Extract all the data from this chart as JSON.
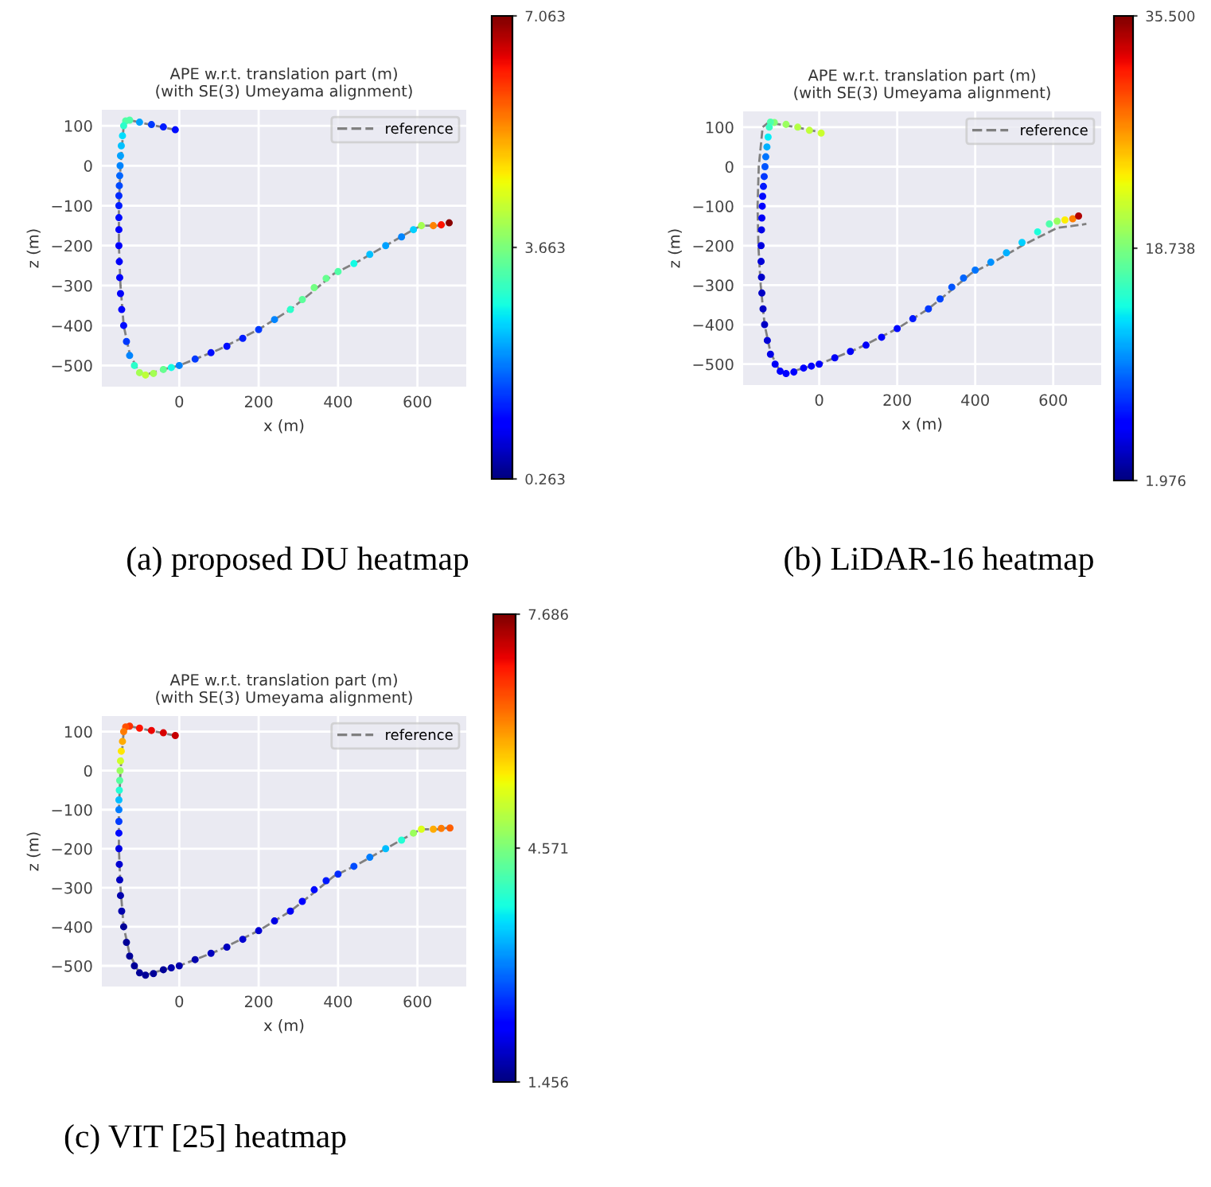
{
  "chart_data": [
    {
      "type": "line",
      "title": "APE w.r.t. translation part (m)\n(with SE(3) Umeyama alignment)",
      "xlabel": "x (m)",
      "ylabel": "z (m)",
      "xlim": [
        -195,
        723
      ],
      "ylim": [
        -553,
        140
      ],
      "xticks": [
        0,
        200,
        400,
        600
      ],
      "yticks": [
        100,
        0,
        {
          "value": -100,
          "label": "−100"
        },
        {
          "value": -200,
          "label": "−200"
        },
        {
          "value": -300,
          "label": "−300"
        },
        {
          "value": -400,
          "label": "−400"
        },
        {
          "value": -500,
          "label": "−500"
        }
      ],
      "grid": true,
      "legend": "top right",
      "clim": [
        0.263,
        7.063
      ],
      "cticks": [
        0.263,
        3.663,
        7.063
      ],
      "annotations": [
        "(a) proposed DU heatmap"
      ],
      "series": [
        {
          "type": "scatter",
          "x": [
            -10,
            -40,
            -70,
            -100,
            -125,
            -135,
            -140,
            -143,
            -146,
            -148,
            -149,
            -150,
            -151,
            -152,
            -152,
            -152,
            -152,
            -152,
            -151,
            -150,
            -148,
            -145,
            -140,
            -133,
            -125,
            -113,
            -100,
            -85,
            -65,
            -40,
            -20,
            0,
            40,
            80,
            120,
            160,
            200,
            240,
            280,
            310,
            340,
            370,
            400,
            440,
            480,
            520,
            560,
            590,
            610,
            640,
            660,
            680
          ],
          "values": [
            90,
            97,
            103,
            109,
            114,
            112,
            100,
            75,
            50,
            25,
            0,
            -25,
            -50,
            -75,
            -100,
            -130,
            -160,
            -200,
            -240,
            -280,
            -320,
            -360,
            -400,
            -440,
            -475,
            -500,
            -518,
            -524,
            -520,
            -510,
            -505,
            -500,
            -484,
            -468,
            -452,
            -432,
            -410,
            -385,
            -360,
            -335,
            -305,
            -282,
            -265,
            -245,
            -222,
            -200,
            -178,
            -160,
            -150,
            -150,
            -148,
            -143
          ],
          "colors": [
            "#000dff",
            "#001cff",
            "#003aff",
            "#00a3ff",
            "#50ffa7",
            "#50ffa7",
            "#2bffcb",
            "#00dffc",
            "#00c1ff",
            "#00a3ff",
            "#0085ff",
            "#0067ff",
            "#0049ff",
            "#002bff",
            "#001cff",
            "#000dff",
            "#0000ff",
            "#0000fc",
            "#0000fc",
            "#0000fc",
            "#0000fc",
            "#0000ff",
            "#000dff",
            "#003aff",
            "#0085ff",
            "#2bffcb",
            "#a4ff52",
            "#bcff3a",
            "#a4ff52",
            "#67ff8f",
            "#13fde4",
            "#0085ff",
            "#003aff",
            "#000dff",
            "#000dff",
            "#001cff",
            "#003aff",
            "#0085ff",
            "#2bffcb",
            "#5bff9b",
            "#74ff83",
            "#67ff8f",
            "#50ffa7",
            "#13fde4",
            "#00c1ff",
            "#00a3ff",
            "#0085ff",
            "#00d0ff",
            "#a4ff52",
            "#ff8400",
            "#ff1400",
            "#8a0000"
          ],
          "cvalues": [
            1.2,
            1.3,
            1.5,
            2.2,
            3.3,
            3.3,
            3.0,
            2.6,
            2.4,
            2.2,
            2.0,
            1.8,
            1.6,
            1.4,
            1.3,
            1.2,
            1.1,
            1.0,
            1.0,
            1.0,
            1.0,
            1.1,
            1.2,
            1.5,
            2.0,
            3.0,
            4.0,
            4.2,
            4.0,
            3.5,
            2.8,
            2.0,
            1.5,
            1.2,
            1.2,
            1.3,
            1.5,
            2.0,
            3.0,
            3.4,
            3.6,
            3.5,
            3.3,
            2.8,
            2.4,
            2.2,
            2.0,
            2.5,
            4.0,
            5.5,
            6.3,
            7.0
          ]
        },
        {
          "name": "reference",
          "color": "#808080",
          "line_style": "dashed",
          "x": [
            -10,
            -60,
            -130,
            -140,
            -148,
            -152,
            -152,
            -148,
            -140,
            -125,
            -100,
            -80,
            -40,
            0,
            100,
            200,
            280,
            330,
            390,
            450,
            520,
            590,
            610,
            650,
            685
          ],
          "values": [
            90,
            100,
            115,
            100,
            0,
            -100,
            -200,
            -300,
            -400,
            -470,
            -520,
            -522,
            -510,
            -500,
            -460,
            -410,
            -360,
            -320,
            -270,
            -240,
            -200,
            -160,
            -150,
            -150,
            -145
          ]
        }
      ]
    },
    {
      "type": "line",
      "title": "APE w.r.t. translation part (m)\n(with SE(3) Umeyama alignment)",
      "xlabel": "x (m)",
      "ylabel": "z (m)",
      "xlim": [
        -195,
        723
      ],
      "ylim": [
        -553,
        140
      ],
      "xticks": [
        0,
        200,
        400,
        600
      ],
      "yticks": [
        100,
        0,
        {
          "value": -100,
          "label": "−100"
        },
        {
          "value": -200,
          "label": "−200"
        },
        {
          "value": -300,
          "label": "−300"
        },
        {
          "value": -400,
          "label": "−400"
        },
        {
          "value": -500,
          "label": "−500"
        }
      ],
      "grid": true,
      "legend": "top right",
      "clim": [
        1.976,
        35.5
      ],
      "cticks": [
        1.976,
        18.738,
        {
          "value": 35.5,
          "label": "35.500"
        }
      ],
      "annotations": [
        "(b) LiDAR-16 heatmap"
      ],
      "series": [
        {
          "type": "scatter",
          "x": [
            5,
            -25,
            -55,
            -85,
            -115,
            -125,
            -128,
            -131,
            -134,
            -137,
            -139,
            -141,
            -143,
            -145,
            -146,
            -147,
            -148,
            -149,
            -149,
            -148,
            -147,
            -144,
            -140,
            -133,
            -125,
            -113,
            -100,
            -85,
            -65,
            -40,
            -20,
            0,
            40,
            80,
            120,
            160,
            200,
            240,
            280,
            310,
            340,
            370,
            400,
            440,
            480,
            520,
            560,
            590,
            610,
            630,
            650,
            665
          ],
          "values": [
            85,
            92,
            100,
            107,
            112,
            113,
            100,
            75,
            50,
            25,
            0,
            -25,
            -50,
            -75,
            -100,
            -130,
            -160,
            -200,
            -240,
            -280,
            -320,
            -360,
            -400,
            -440,
            -475,
            -500,
            -518,
            -524,
            -520,
            -510,
            -505,
            -500,
            -484,
            -468,
            -452,
            -432,
            -410,
            -385,
            -360,
            -335,
            -305,
            -282,
            -262,
            -242,
            -218,
            -192,
            -165,
            -145,
            -138,
            -135,
            -132,
            -125
          ],
          "colors": [
            "#cbff33",
            "#bfff40",
            "#b3ff4c",
            "#9aff64",
            "#82ff7d",
            "#51ffae",
            "#38ffc7",
            "#07eef8",
            "#00b1ff",
            "#0075ff",
            "#0056ff",
            "#0038ff",
            "#0019ff",
            "#000aff",
            "#0000ff",
            "#0000f9",
            "#0000e8",
            "#0000e1",
            "#0000d7",
            "#0000cc",
            "#0000c6",
            "#0000c6",
            "#0000c6",
            "#0000d7",
            "#0000e8",
            "#0000f9",
            "#0000ff",
            "#0000ff",
            "#0000ff",
            "#0000ff",
            "#0000ff",
            "#0000ff",
            "#0000f9",
            "#0000f9",
            "#0000f9",
            "#0000ff",
            "#000aff",
            "#0019ff",
            "#0038ff",
            "#0047ff",
            "#0056ff",
            "#0066ff",
            "#0075ff",
            "#0093ff",
            "#00b1ff",
            "#00d0ff",
            "#20ffdf",
            "#51ffae",
            "#9aff64",
            "#fcef00",
            "#ff7e00",
            "#b10000"
          ],
          "cvalues": [
            22,
            21.5,
            21,
            20,
            19,
            17,
            16,
            14,
            12,
            10,
            9,
            8,
            7,
            6.5,
            6,
            5.5,
            5,
            4.8,
            4.5,
            4.2,
            4,
            4,
            4,
            4.5,
            5,
            5.5,
            6,
            6,
            6,
            6,
            6,
            6,
            5.5,
            5.5,
            5.5,
            6,
            6.5,
            7,
            8,
            8.5,
            9,
            9.5,
            10,
            11,
            12,
            13,
            15,
            17,
            20,
            24,
            28,
            34
          ]
        },
        {
          "name": "reference",
          "color": "#808080",
          "line_style": "dashed",
          "x": [
            -10,
            -60,
            -130,
            -145,
            -155,
            -158,
            -156,
            -150,
            -140,
            -125,
            -100,
            -80,
            -40,
            0,
            100,
            200,
            280,
            330,
            390,
            450,
            520,
            590,
            610,
            650,
            685
          ],
          "values": [
            90,
            100,
            112,
            100,
            0,
            -100,
            -200,
            -300,
            -400,
            -470,
            -520,
            -522,
            -510,
            -500,
            -460,
            -410,
            -360,
            -320,
            -270,
            -240,
            -200,
            -165,
            -155,
            -150,
            -145
          ]
        }
      ]
    },
    {
      "type": "line",
      "title": "APE w.r.t. translation part (m)\n(with SE(3) Umeyama alignment)",
      "xlabel": "x (m)",
      "ylabel": "z (m)",
      "xlim": [
        -195,
        723
      ],
      "ylim": [
        -553,
        140
      ],
      "xticks": [
        0,
        200,
        400,
        600
      ],
      "yticks": [
        100,
        0,
        {
          "value": -100,
          "label": "−100"
        },
        {
          "value": -200,
          "label": "−200"
        },
        {
          "value": -300,
          "label": "−300"
        },
        {
          "value": -400,
          "label": "−400"
        },
        {
          "value": -500,
          "label": "−500"
        }
      ],
      "grid": true,
      "legend": "top right",
      "clim": [
        1.456,
        7.686
      ],
      "cticks": [
        1.456,
        4.571,
        7.686
      ],
      "annotations": [
        "(c) VIT [25] heatmap"
      ],
      "series": [
        {
          "type": "scatter",
          "x": [
            -10,
            -40,
            -70,
            -100,
            -125,
            -135,
            -140,
            -143,
            -146,
            -148,
            -149,
            -150,
            -151,
            -152,
            -152,
            -152,
            -152,
            -152,
            -151,
            -150,
            -148,
            -145,
            -140,
            -133,
            -125,
            -113,
            -100,
            -85,
            -65,
            -40,
            -20,
            0,
            40,
            80,
            120,
            160,
            200,
            240,
            280,
            310,
            340,
            370,
            400,
            440,
            480,
            520,
            560,
            590,
            610,
            640,
            660,
            682
          ],
          "values": [
            90,
            97,
            103,
            109,
            114,
            112,
            100,
            75,
            50,
            25,
            0,
            -25,
            -50,
            -75,
            -100,
            -130,
            -160,
            -200,
            -240,
            -280,
            -320,
            -360,
            -400,
            -440,
            -475,
            -500,
            -518,
            -524,
            -520,
            -510,
            -505,
            -500,
            -484,
            -468,
            -452,
            -432,
            -410,
            -385,
            -360,
            -335,
            -305,
            -282,
            -265,
            -245,
            -222,
            -200,
            -178,
            -160,
            -150,
            -150,
            -148,
            -147
          ],
          "colors": [
            "#c70000",
            "#da0000",
            "#ec0400",
            "#ff1300",
            "#ff3100",
            "#ff5000",
            "#ff7d00",
            "#ffab00",
            "#ffe700",
            "#cfff29",
            "#9aff5d",
            "#57ff9f",
            "#22ffd4",
            "#00bfff",
            "#007dff",
            "#003cff",
            "#000bff",
            "#0000e5",
            "#0000d2",
            "#0000bf",
            "#0000ad",
            "#0000ad",
            "#00009a",
            "#00009a",
            "#00009a",
            "#00009a",
            "#00009a",
            "#00009a",
            "#00009a",
            "#00009a",
            "#0000ad",
            "#0000ad",
            "#0000ad",
            "#0000bf",
            "#0000bf",
            "#0000d2",
            "#0000d2",
            "#0000e5",
            "#0000f7",
            "#0000ff",
            "#000bff",
            "#001bff",
            "#002bff",
            "#004cff",
            "#007dff",
            "#00bfff",
            "#22ffd4",
            "#9aff5d",
            "#dbff1b",
            "#ffab00",
            "#ff7d00",
            "#ff5f00"
          ],
          "cvalues": [
            7.3,
            7.2,
            7.1,
            7.0,
            6.8,
            6.6,
            6.3,
            6.0,
            5.6,
            5.2,
            4.8,
            4.3,
            3.9,
            3.4,
            3.0,
            2.6,
            2.3,
            2.0,
            1.9,
            1.8,
            1.7,
            1.7,
            1.6,
            1.6,
            1.6,
            1.6,
            1.6,
            1.6,
            1.6,
            1.6,
            1.7,
            1.7,
            1.7,
            1.8,
            1.8,
            1.9,
            1.9,
            2.0,
            2.1,
            2.2,
            2.3,
            2.4,
            2.5,
            2.7,
            3.0,
            3.4,
            3.9,
            4.8,
            5.3,
            6.0,
            6.3,
            6.5
          ]
        },
        {
          "name": "reference",
          "color": "#808080",
          "line_style": "dashed",
          "x": [
            -10,
            -60,
            -130,
            -140,
            -148,
            -152,
            -152,
            -148,
            -140,
            -125,
            -100,
            -80,
            -40,
            0,
            100,
            200,
            280,
            330,
            390,
            450,
            520,
            590,
            610,
            650,
            685
          ],
          "values": [
            90,
            100,
            115,
            100,
            0,
            -100,
            -200,
            -300,
            -400,
            -470,
            -520,
            -522,
            -510,
            -500,
            -460,
            -410,
            -360,
            -320,
            -270,
            -240,
            -200,
            -160,
            -150,
            -150,
            -145
          ]
        }
      ]
    }
  ]
}
